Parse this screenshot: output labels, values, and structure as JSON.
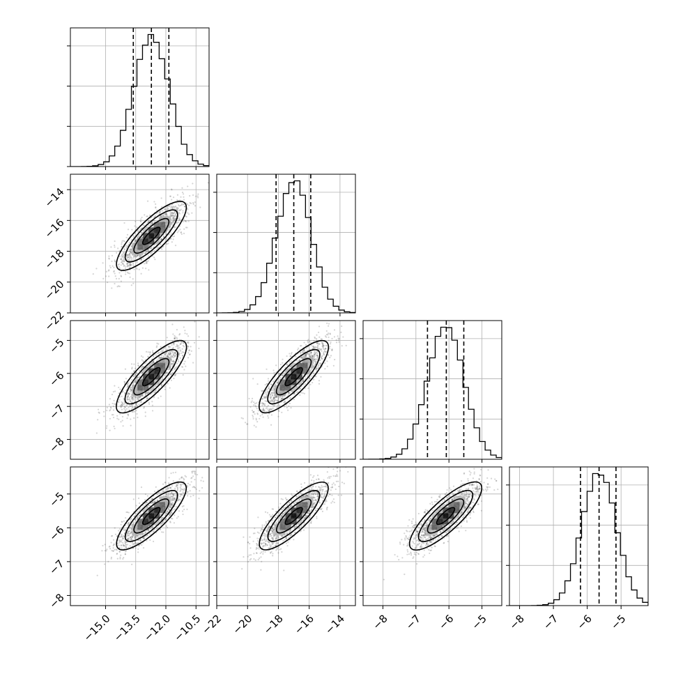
{
  "chart_data": {
    "type": "corner",
    "grid": true,
    "parameters": [
      {
        "index": 0,
        "range": [
          -16.75,
          -9.85
        ],
        "mean": -12.72,
        "sd": 0.87,
        "quantiles": [
          -13.62,
          -12.72,
          -11.85
        ],
        "ticks": [
          -15.0,
          -13.5,
          -12.0,
          -10.5
        ],
        "tick_labels": [
          "−15.0",
          "−13.5",
          "−12.0",
          "−10.5"
        ]
      },
      {
        "index": 1,
        "range": [
          -22,
          -13
        ],
        "mean": -17.0,
        "sd": 1.12,
        "quantiles": [
          -18.15,
          -17.0,
          -15.9
        ],
        "ticks": [
          -22,
          -20,
          -18,
          -16,
          -14
        ],
        "tick_labels": [
          "−22",
          "−20",
          "−18",
          "−16",
          "−14"
        ]
      },
      {
        "index": 2,
        "range": [
          -8.6,
          -4.4
        ],
        "mean": -6.1,
        "sd": 0.55,
        "quantiles": [
          -6.65,
          -6.08,
          -5.55
        ],
        "ticks": [
          -8,
          -7,
          -6,
          -5
        ],
        "tick_labels": [
          "−8",
          "−7",
          "−6",
          "−5"
        ]
      },
      {
        "index": 3,
        "range": [
          -8.3,
          -4.2
        ],
        "mean": -5.65,
        "sd": 0.5,
        "quantiles": [
          -6.2,
          -5.65,
          -5.15
        ],
        "ticks": [
          -8,
          -7,
          -6,
          -5
        ],
        "tick_labels": [
          "−8",
          "−7",
          "−6",
          "−5"
        ]
      }
    ],
    "correlation": 0.82,
    "histograms": [
      {
        "param": 0,
        "bins": 25,
        "peak_count": "unlabeled"
      },
      {
        "param": 1,
        "bins": 25,
        "peak_count": "unlabeled"
      },
      {
        "param": 2,
        "bins": 25,
        "peak_count": "unlabeled"
      },
      {
        "param": 3,
        "bins": 25,
        "peak_count": "unlabeled"
      }
    ],
    "contour_levels_sigma": [
      0.5,
      1.0,
      1.5,
      2.0
    ],
    "colors": {
      "line": "#000000",
      "scatter": "#555555",
      "grid": "#b0b0b0",
      "spine": "#000000"
    }
  }
}
